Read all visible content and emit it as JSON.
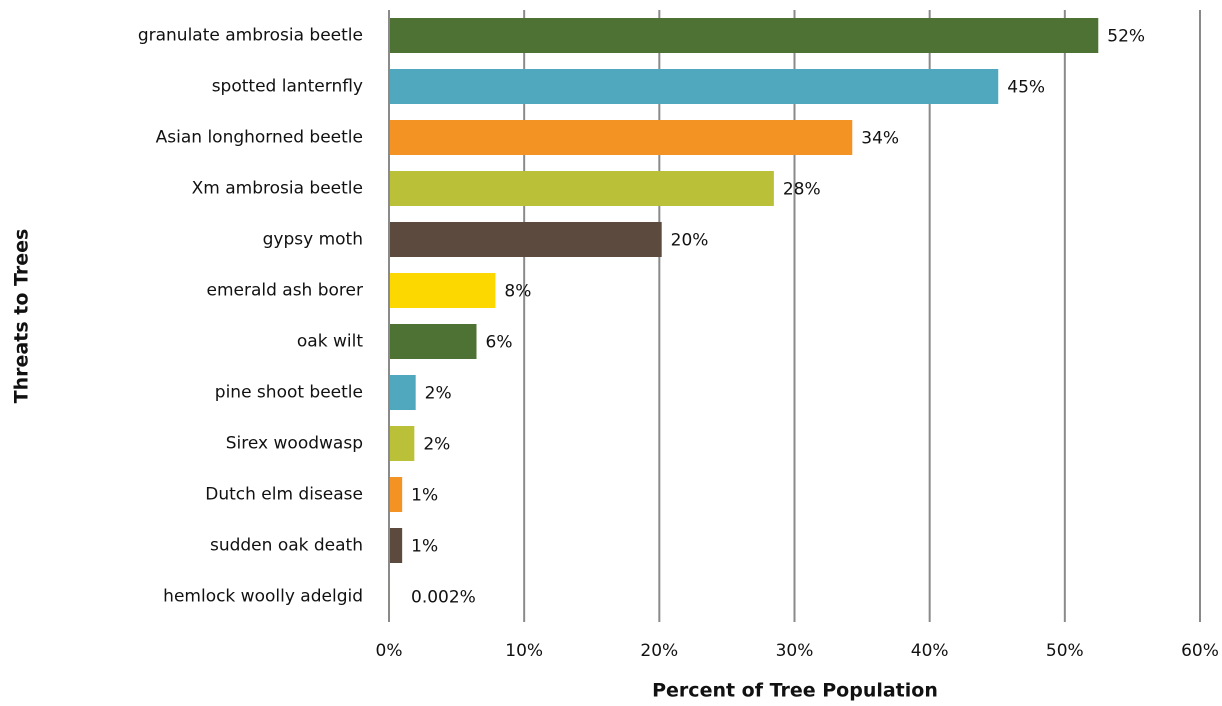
{
  "chart_data": {
    "type": "barh",
    "x_label": "Percent of Tree Population",
    "y_label": "Threats to Trees",
    "categories": [
      "granulate ambrosia beetle",
      "spotted lanternfly",
      "Asian longhorned beetle",
      "Xm ambrosia beetle",
      "gypsy moth",
      "emerald ash borer",
      "oak wilt",
      "pine shoot beetle",
      "Sirex woodwasp",
      "Dutch elm disease",
      "sudden oak death",
      "hemlock woolly adelgid"
    ],
    "values": [
      52.4,
      45.0,
      34.2,
      28.4,
      20.1,
      7.8,
      6.4,
      1.9,
      1.8,
      0.9,
      0.9,
      0.002
    ],
    "value_labels": [
      "52%",
      "45%",
      "34%",
      "28%",
      "20%",
      "8%",
      "6%",
      "2%",
      "2%",
      "1%",
      "1%",
      "0.002%"
    ],
    "colors": [
      "#4e7233",
      "#4fa8bd",
      "#f39323",
      "#bac037",
      "#5c4a3f",
      "#fdd800",
      "#4e7233",
      "#4fa8bd",
      "#bac037",
      "#f39323",
      "#5c4a3f",
      "#fdd800"
    ],
    "xlim": [
      0,
      60
    ],
    "xticks": [
      {
        "value": 0,
        "label": "0%"
      },
      {
        "value": 10,
        "label": "10%"
      },
      {
        "value": 20,
        "label": "20%"
      },
      {
        "value": 30,
        "label": "30%"
      },
      {
        "value": 40,
        "label": "40%"
      },
      {
        "value": 50,
        "label": "50%"
      },
      {
        "value": 60,
        "label": "60%"
      }
    ],
    "grid": true
  }
}
